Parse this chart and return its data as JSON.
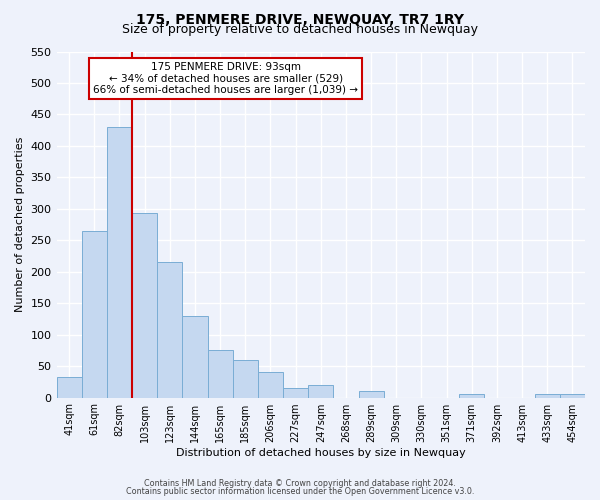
{
  "title": "175, PENMERE DRIVE, NEWQUAY, TR7 1RY",
  "subtitle": "Size of property relative to detached houses in Newquay",
  "xlabel": "Distribution of detached houses by size in Newquay",
  "ylabel": "Number of detached properties",
  "bar_labels": [
    "41sqm",
    "61sqm",
    "82sqm",
    "103sqm",
    "123sqm",
    "144sqm",
    "165sqm",
    "185sqm",
    "206sqm",
    "227sqm",
    "247sqm",
    "268sqm",
    "289sqm",
    "309sqm",
    "330sqm",
    "351sqm",
    "371sqm",
    "392sqm",
    "413sqm",
    "433sqm",
    "454sqm"
  ],
  "bar_heights": [
    32,
    265,
    430,
    293,
    215,
    130,
    76,
    59,
    40,
    15,
    20,
    0,
    10,
    0,
    0,
    0,
    5,
    0,
    0,
    5,
    5
  ],
  "bar_color": "#c5d8f0",
  "bar_edge_color": "#7aadd4",
  "vline_x": 3.0,
  "vline_color": "#cc0000",
  "ylim": [
    0,
    550
  ],
  "yticks": [
    0,
    50,
    100,
    150,
    200,
    250,
    300,
    350,
    400,
    450,
    500,
    550
  ],
  "annotation_title": "175 PENMERE DRIVE: 93sqm",
  "annotation_line1": "← 34% of detached houses are smaller (529)",
  "annotation_line2": "66% of semi-detached houses are larger (1,039) →",
  "annotation_box_color": "#ffffff",
  "annotation_box_edge": "#cc0000",
  "footer1": "Contains HM Land Registry data © Crown copyright and database right 2024.",
  "footer2": "Contains public sector information licensed under the Open Government Licence v3.0.",
  "bg_color": "#eef2fb",
  "grid_color": "#ffffff",
  "title_fontsize": 10,
  "subtitle_fontsize": 9
}
